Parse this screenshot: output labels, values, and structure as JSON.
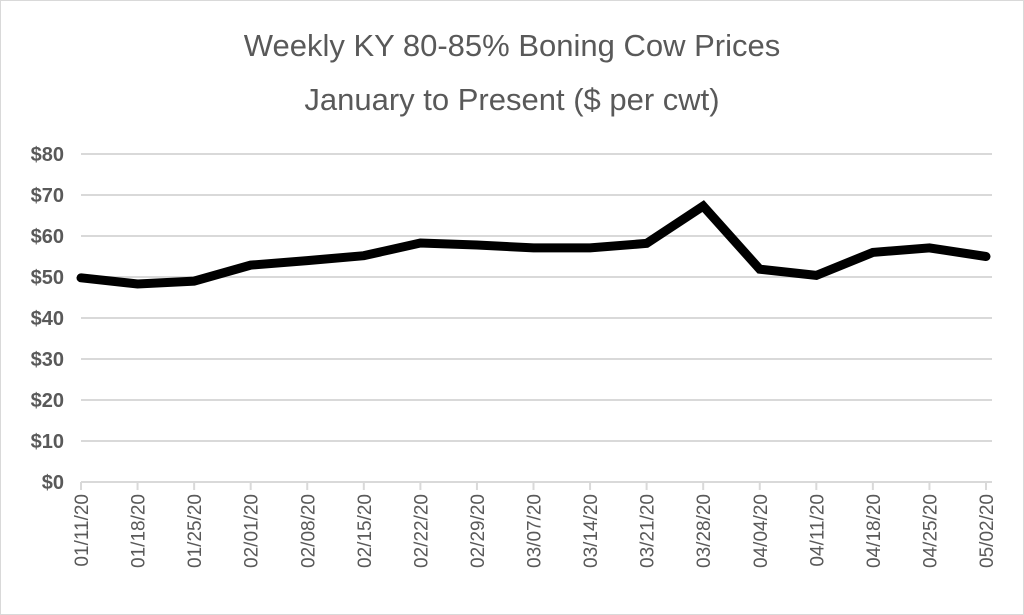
{
  "chart_data": {
    "type": "line",
    "title": "Weekly KY 80-85% Boning Cow Prices",
    "subtitle": "January to Present ($ per cwt)",
    "xlabel": "",
    "ylabel": "",
    "ylim": [
      0,
      80
    ],
    "y_ticks": [
      "$0",
      "$10",
      "$20",
      "$30",
      "$40",
      "$50",
      "$60",
      "$70",
      "$80"
    ],
    "y_tick_values": [
      0,
      10,
      20,
      30,
      40,
      50,
      60,
      70,
      80
    ],
    "grid": true,
    "legend": "none",
    "categories": [
      "01/11/20",
      "01/18/20",
      "01/25/20",
      "02/01/20",
      "02/08/20",
      "02/15/20",
      "02/22/20",
      "02/29/20",
      "03/07/20",
      "03/14/20",
      "03/21/20",
      "03/28/20",
      "04/04/20",
      "04/11/20",
      "04/18/20",
      "04/25/20",
      "05/02/20"
    ],
    "series": [
      {
        "name": "KY 80-85% Boning Cow Price",
        "color": "#000000",
        "values": [
          49.8,
          48.3,
          49.0,
          52.9,
          54.0,
          55.2,
          58.3,
          57.8,
          57.1,
          57.1,
          58.2,
          67.3,
          51.9,
          50.4,
          56.0,
          57.1,
          55.0
        ]
      }
    ],
    "colors": {
      "grid": "#d9d9d9",
      "text": "#595959",
      "line": "#000000"
    }
  }
}
